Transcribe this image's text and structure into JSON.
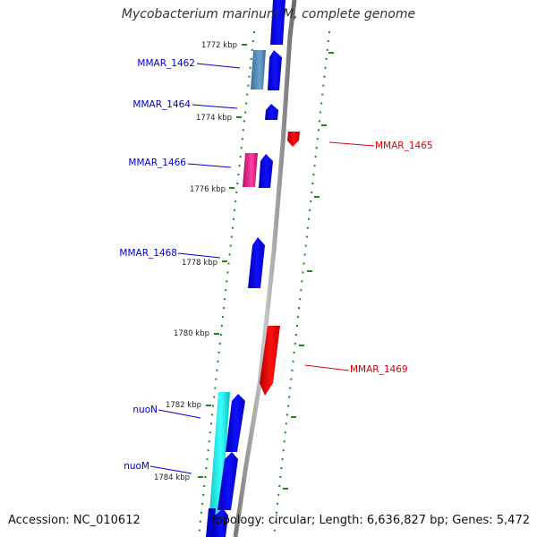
{
  "title": "Mycobacterium marinum M, complete genome",
  "footer": {
    "accession": "Accession: NC_010612",
    "topology": "Topology: circular;",
    "length": "Length: 6,636,827 bp;",
    "genes": "Genes: 5,472"
  },
  "ticks": [
    {
      "label": "1772 kbp"
    },
    {
      "label": "1774 kbp"
    },
    {
      "label": "1776 kbp"
    },
    {
      "label": "1778 kbp"
    },
    {
      "label": "1780 kbp"
    },
    {
      "label": "1782 kbp"
    },
    {
      "label": "1784 kbp"
    }
  ],
  "genes": [
    {
      "label": "MMAR_1462",
      "strand": "forward",
      "color": "#0000ee"
    },
    {
      "label": "MMAR_1464",
      "strand": "forward",
      "color": "#0000ee"
    },
    {
      "label": "MMAR_1465",
      "strand": "reverse",
      "color": "#ee0000"
    },
    {
      "label": "MMAR_1466",
      "strand": "forward",
      "color": "#0000ee"
    },
    {
      "label": "MMAR_1468",
      "strand": "forward",
      "color": "#0000ee"
    },
    {
      "label": "MMAR_1469",
      "strand": "reverse",
      "color": "#ee0000"
    },
    {
      "label": "nuoN",
      "strand": "forward",
      "color": "#0000ee"
    },
    {
      "label": "nuoM",
      "strand": "forward",
      "color": "#0000ee"
    }
  ],
  "colors": {
    "forward": "#0000ee",
    "reverse": "#ee0000",
    "backbone": "#888888",
    "gc_dots": "#1a8a1a",
    "cds_steelblue": "#4682b4",
    "cds_magenta": "#e0208a",
    "cds_cyan": "#00e5e5"
  }
}
